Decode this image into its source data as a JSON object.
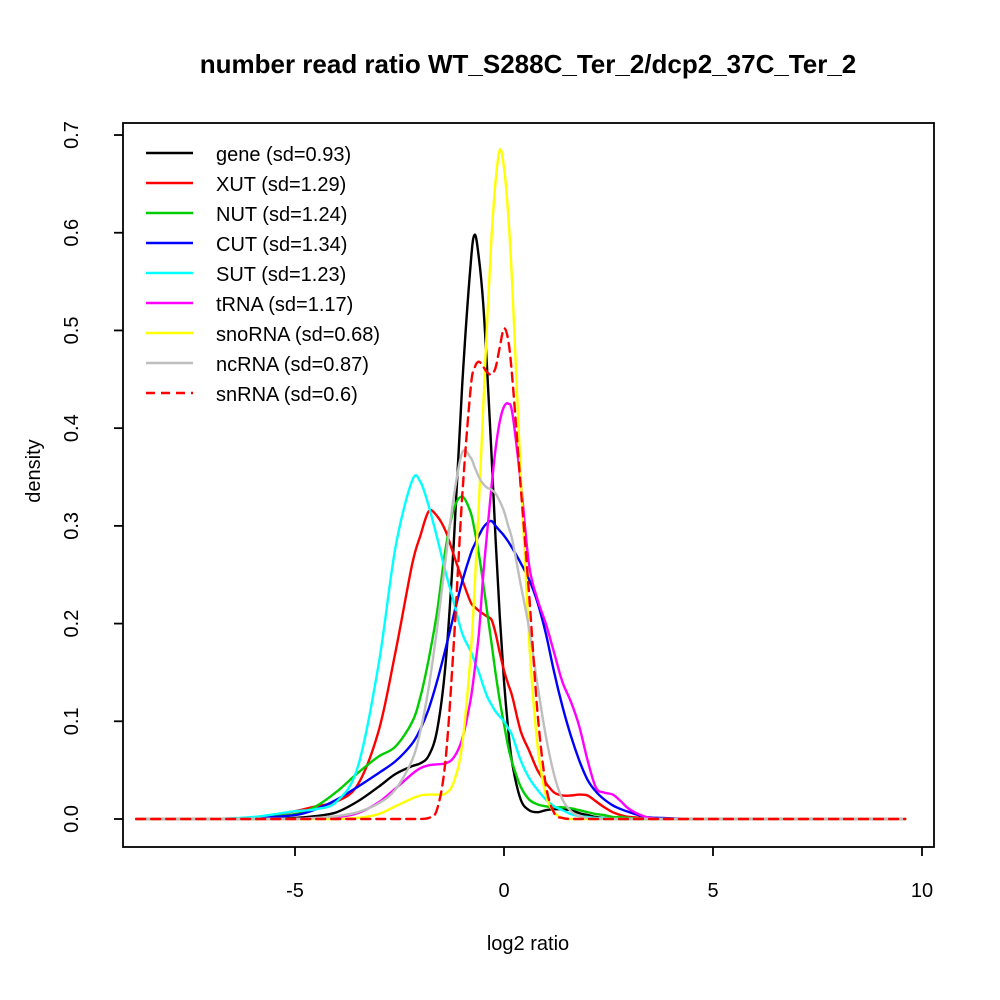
{
  "title": "number read ratio WT_S288C_Ter_2/dcp2_37C_Ter_2",
  "axes": {
    "x_label": "log2 ratio",
    "y_label": "density"
  },
  "legend": {
    "position": "top-left",
    "entries": [
      {
        "label": "gene (sd=0.93)",
        "color": "#000000",
        "dashed": false
      },
      {
        "label": "XUT (sd=1.29)",
        "color": "#FF0000",
        "dashed": false
      },
      {
        "label": "NUT (sd=1.24)",
        "color": "#00CD00",
        "dashed": false
      },
      {
        "label": "CUT (sd=1.34)",
        "color": "#0000FF",
        "dashed": false
      },
      {
        "label": "SUT (sd=1.23)",
        "color": "#00FFFF",
        "dashed": false
      },
      {
        "label": "tRNA (sd=1.17)",
        "color": "#FF00FF",
        "dashed": false
      },
      {
        "label": "snoRNA (sd=0.68)",
        "color": "#FFFF00",
        "dashed": false
      },
      {
        "label": "ncRNA (sd=0.87)",
        "color": "#BEBEBE",
        "dashed": false
      },
      {
        "label": "snRNA (sd=0.6)",
        "color": "#FF0000",
        "dashed": true
      }
    ]
  },
  "chart_data": {
    "type": "line",
    "subtype": "density",
    "title": "number read ratio WT_S288C_Ter_2/dcp2_37C_Ter_2",
    "xlabel": "log2 ratio",
    "ylabel": "density",
    "xlim": [
      -9.1,
      10.3
    ],
    "ylim": [
      0,
      0.712
    ],
    "x_ticks": [
      -5,
      0,
      5,
      10
    ],
    "y_ticks": [
      0.0,
      0.1,
      0.2,
      0.3,
      0.4,
      0.5,
      0.6,
      0.7
    ],
    "grid": false,
    "legend_position": "top-left",
    "x": [
      -8.8,
      -8,
      -7,
      -6,
      -5,
      -4.5,
      -4,
      -3.5,
      -3,
      -2.6,
      -2.2,
      -2,
      -1.8,
      -1.6,
      -1.4,
      -1.2,
      -1,
      -0.8,
      -0.7,
      -0.6,
      -0.5,
      -0.4,
      -0.3,
      -0.2,
      -0.1,
      0,
      0.1,
      0.2,
      0.4,
      0.6,
      0.8,
      1,
      1.2,
      1.4,
      1.6,
      1.8,
      2,
      2.2,
      2.4,
      2.6,
      2.8,
      3,
      3.4,
      3.8,
      4.5,
      5.5,
      7,
      8.5,
      9.6
    ],
    "series": [
      {
        "name": "gene",
        "sd": 0.93,
        "color": "#000000",
        "dashed": false,
        "y": [
          0,
          0,
          0,
          0,
          0.001,
          0.003,
          0.007,
          0.018,
          0.033,
          0.046,
          0.054,
          0.057,
          0.065,
          0.091,
          0.158,
          0.283,
          0.444,
          0.567,
          0.598,
          0.574,
          0.529,
          0.457,
          0.373,
          0.286,
          0.207,
          0.141,
          0.092,
          0.056,
          0.02,
          0.009,
          0.007,
          0.009,
          0.01,
          0.01,
          0.009,
          0.006,
          0.004,
          0.002,
          0.001,
          0.001,
          0,
          0,
          0,
          0,
          0,
          0,
          0,
          0,
          0
        ]
      },
      {
        "name": "XUT",
        "sd": 1.29,
        "color": "#FF0000",
        "dashed": false,
        "y": [
          0,
          0,
          0,
          0.001,
          0.008,
          0.013,
          0.018,
          0.035,
          0.09,
          0.17,
          0.26,
          0.29,
          0.315,
          0.31,
          0.295,
          0.27,
          0.245,
          0.222,
          0.217,
          0.213,
          0.21,
          0.207,
          0.204,
          0.19,
          0.17,
          0.152,
          0.138,
          0.125,
          0.09,
          0.07,
          0.05,
          0.037,
          0.027,
          0.024,
          0.024,
          0.025,
          0.024,
          0.018,
          0.012,
          0.007,
          0.004,
          0.002,
          0.001,
          0,
          0,
          0,
          0,
          0,
          0
        ]
      },
      {
        "name": "NUT",
        "sd": 1.24,
        "color": "#00CD00",
        "dashed": false,
        "y": [
          0,
          0,
          0,
          0.001,
          0.005,
          0.013,
          0.028,
          0.047,
          0.064,
          0.074,
          0.099,
          0.125,
          0.164,
          0.212,
          0.276,
          0.317,
          0.33,
          0.314,
          0.295,
          0.271,
          0.242,
          0.211,
          0.18,
          0.149,
          0.121,
          0.097,
          0.074,
          0.057,
          0.033,
          0.02,
          0.015,
          0.013,
          0.012,
          0.012,
          0.011,
          0.009,
          0.007,
          0.005,
          0.004,
          0.002,
          0.002,
          0.001,
          0,
          0,
          0,
          0,
          0,
          0,
          0
        ]
      },
      {
        "name": "CUT",
        "sd": 1.34,
        "color": "#0000FF",
        "dashed": false,
        "y": [
          0,
          0,
          0,
          0.001,
          0.004,
          0.01,
          0.02,
          0.033,
          0.047,
          0.059,
          0.077,
          0.092,
          0.113,
          0.141,
          0.174,
          0.209,
          0.243,
          0.271,
          0.281,
          0.29,
          0.298,
          0.303,
          0.305,
          0.3,
          0.295,
          0.29,
          0.284,
          0.277,
          0.262,
          0.245,
          0.222,
          0.19,
          0.15,
          0.115,
          0.085,
          0.06,
          0.04,
          0.028,
          0.02,
          0.014,
          0.01,
          0.007,
          0.002,
          0.001,
          0,
          0,
          0,
          0,
          0
        ]
      },
      {
        "name": "SUT",
        "sd": 1.23,
        "color": "#00FFFF",
        "dashed": false,
        "y": [
          0,
          0,
          0,
          0.002,
          0.008,
          0.01,
          0.018,
          0.053,
          0.158,
          0.277,
          0.346,
          0.345,
          0.32,
          0.288,
          0.253,
          0.222,
          0.19,
          0.172,
          0.161,
          0.15,
          0.137,
          0.125,
          0.117,
          0.11,
          0.105,
          0.1,
          0.093,
          0.085,
          0.06,
          0.042,
          0.03,
          0.02,
          0.013,
          0.009,
          0.005,
          0.003,
          0.002,
          0.001,
          0.001,
          0,
          0,
          0,
          0,
          0,
          0,
          0,
          0,
          0,
          0
        ]
      },
      {
        "name": "tRNA",
        "sd": 1.17,
        "color": "#FF00FF",
        "dashed": false,
        "y": [
          0,
          0,
          0,
          0,
          0,
          0.001,
          0.002,
          0.006,
          0.017,
          0.031,
          0.046,
          0.052,
          0.055,
          0.056,
          0.057,
          0.063,
          0.082,
          0.122,
          0.153,
          0.19,
          0.248,
          0.295,
          0.34,
          0.379,
          0.407,
          0.422,
          0.425,
          0.415,
          0.345,
          0.26,
          0.225,
          0.2,
          0.17,
          0.14,
          0.12,
          0.095,
          0.06,
          0.032,
          0.027,
          0.025,
          0.018,
          0.01,
          0.002,
          0,
          0,
          0,
          0,
          0,
          0
        ]
      },
      {
        "name": "snoRNA",
        "sd": 0.68,
        "color": "#FFFF00",
        "dashed": false,
        "y": [
          0,
          0,
          0,
          0,
          0,
          0,
          0,
          0.001,
          0.005,
          0.013,
          0.021,
          0.024,
          0.025,
          0.025,
          0.026,
          0.038,
          0.076,
          0.167,
          0.238,
          0.323,
          0.418,
          0.512,
          0.595,
          0.653,
          0.685,
          0.667,
          0.619,
          0.543,
          0.353,
          0.183,
          0.076,
          0.025,
          0.007,
          0.001,
          0,
          0,
          0,
          0,
          0,
          0,
          0,
          0,
          0,
          0,
          0,
          0,
          0,
          0,
          0
        ]
      },
      {
        "name": "ncRNA",
        "sd": 0.87,
        "color": "#BEBEBE",
        "dashed": false,
        "y": [
          0,
          0,
          0,
          0,
          0,
          0.001,
          0.003,
          0.007,
          0.016,
          0.03,
          0.06,
          0.09,
          0.135,
          0.195,
          0.265,
          0.33,
          0.375,
          0.37,
          0.36,
          0.35,
          0.343,
          0.339,
          0.337,
          0.333,
          0.325,
          0.315,
          0.3,
          0.285,
          0.24,
          0.195,
          0.138,
          0.085,
          0.045,
          0.02,
          0.008,
          0.003,
          0.001,
          0,
          0,
          0,
          0,
          0,
          0,
          0,
          0,
          0,
          0,
          0,
          0
        ]
      },
      {
        "name": "snRNA",
        "sd": 0.6,
        "color": "#FF0000",
        "dashed": true,
        "y": [
          0,
          0,
          0,
          0,
          0,
          0,
          0,
          0,
          0,
          0,
          0,
          0,
          0.001,
          0.01,
          0.06,
          0.18,
          0.33,
          0.44,
          0.462,
          0.468,
          0.463,
          0.457,
          0.455,
          0.462,
          0.483,
          0.502,
          0.49,
          0.45,
          0.34,
          0.23,
          0.11,
          0.035,
          0.006,
          0.001,
          0,
          0,
          0,
          0,
          0,
          0,
          0,
          0,
          0,
          0,
          0,
          0,
          0,
          0,
          0
        ]
      }
    ]
  }
}
